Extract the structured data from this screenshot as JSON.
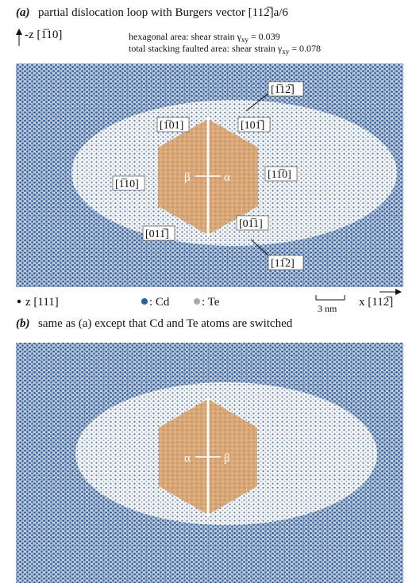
{
  "panel_a": {
    "label": "(a)",
    "caption": "partial dislocation loop with Burgers vector [112̅]a/6",
    "axis_up": "-z [1̅10]",
    "strain_lines": [
      {
        "text": "hexagonal area: shear strain γ",
        "sub": "xy",
        "value": " = 0.039"
      },
      {
        "text": "total stacking faulted area: shear strain γ",
        "sub": "xy",
        "value": " = 0.078"
      }
    ],
    "directions": [
      "[1̅12̅]",
      "[1̅01]",
      "[101̅]",
      "[1̅10]",
      "[11̅0]",
      "[011̅]",
      "[01̅1]",
      "[11̅2]"
    ],
    "beta": "β",
    "alpha": "α",
    "axis_out": "z [111]",
    "legend": [
      ": Cd",
      ": Te"
    ],
    "scale_bar": "3 nm",
    "axis_right": "x [112̅]"
  },
  "panel_b": {
    "label": "(b)",
    "caption": "same as (a) except that Cd and Te atoms are switched",
    "alpha": "α",
    "beta": "β"
  }
}
